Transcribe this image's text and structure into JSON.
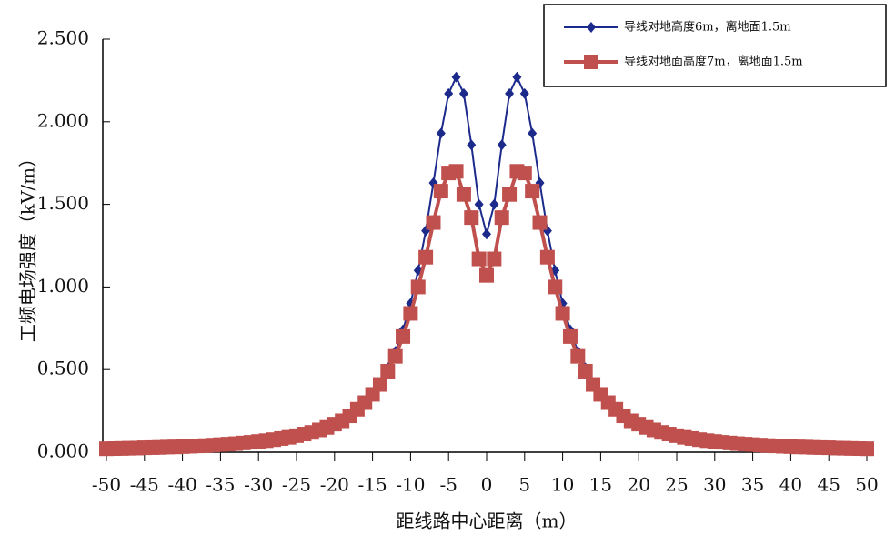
{
  "chart_data": {
    "type": "line",
    "x_label": "距线路中心距离（m）",
    "y_label": "工频电场强度（kV/m）",
    "x": [
      -50,
      -49,
      -48,
      -47,
      -46,
      -45,
      -44,
      -43,
      -42,
      -41,
      -40,
      -39,
      -38,
      -37,
      -36,
      -35,
      -34,
      -33,
      -32,
      -31,
      -30,
      -29,
      -28,
      -27,
      -26,
      -25,
      -24,
      -23,
      -22,
      -21,
      -20,
      -19,
      -18,
      -17,
      -16,
      -15,
      -14,
      -13,
      -12,
      -11,
      -10,
      -9,
      -8,
      -7,
      -6,
      -5,
      -4,
      -3,
      -2,
      -1,
      0,
      1,
      2,
      3,
      4,
      5,
      6,
      7,
      8,
      9,
      10,
      11,
      12,
      13,
      14,
      15,
      16,
      17,
      18,
      19,
      20,
      21,
      22,
      23,
      24,
      25,
      26,
      27,
      28,
      29,
      30,
      31,
      32,
      33,
      34,
      35,
      36,
      37,
      38,
      39,
      40,
      41,
      42,
      43,
      44,
      45,
      46,
      47,
      48,
      49,
      50
    ],
    "series": [
      {
        "name": "导线对地高度6m，离地面1.5m",
        "color": "#1c2a8c",
        "marker": "diamond",
        "values": [
          0.021,
          0.022,
          0.023,
          0.024,
          0.025,
          0.027,
          0.028,
          0.029,
          0.031,
          0.032,
          0.034,
          0.036,
          0.038,
          0.04,
          0.043,
          0.046,
          0.049,
          0.052,
          0.056,
          0.06,
          0.065,
          0.07,
          0.076,
          0.083,
          0.09,
          0.1,
          0.11,
          0.12,
          0.135,
          0.15,
          0.17,
          0.19,
          0.22,
          0.26,
          0.3,
          0.36,
          0.42,
          0.51,
          0.61,
          0.74,
          0.9,
          1.1,
          1.34,
          1.63,
          1.93,
          2.17,
          2.27,
          2.17,
          1.86,
          1.5,
          1.32,
          1.5,
          1.86,
          2.17,
          2.27,
          2.17,
          1.93,
          1.63,
          1.34,
          1.1,
          0.9,
          0.74,
          0.61,
          0.51,
          0.42,
          0.36,
          0.3,
          0.26,
          0.22,
          0.19,
          0.17,
          0.15,
          0.135,
          0.12,
          0.11,
          0.1,
          0.09,
          0.083,
          0.076,
          0.07,
          0.065,
          0.06,
          0.056,
          0.052,
          0.049,
          0.046,
          0.043,
          0.04,
          0.038,
          0.036,
          0.034,
          0.032,
          0.031,
          0.029,
          0.028,
          0.027,
          0.025,
          0.024,
          0.023,
          0.022,
          0.021
        ]
      },
      {
        "name": "导线对地面高度7m，离地面1.5m",
        "color": "#c0504d",
        "marker": "square",
        "values": [
          0.021,
          0.022,
          0.023,
          0.024,
          0.025,
          0.027,
          0.028,
          0.029,
          0.031,
          0.032,
          0.034,
          0.036,
          0.038,
          0.04,
          0.043,
          0.046,
          0.049,
          0.052,
          0.056,
          0.06,
          0.065,
          0.07,
          0.076,
          0.083,
          0.09,
          0.1,
          0.11,
          0.12,
          0.135,
          0.15,
          0.17,
          0.19,
          0.22,
          0.26,
          0.3,
          0.35,
          0.41,
          0.49,
          0.58,
          0.7,
          0.84,
          1.0,
          1.18,
          1.39,
          1.58,
          1.69,
          1.7,
          1.56,
          1.42,
          1.17,
          1.07,
          1.17,
          1.42,
          1.56,
          1.7,
          1.69,
          1.58,
          1.39,
          1.18,
          1.0,
          0.84,
          0.7,
          0.58,
          0.49,
          0.41,
          0.35,
          0.3,
          0.26,
          0.22,
          0.19,
          0.17,
          0.15,
          0.135,
          0.12,
          0.11,
          0.1,
          0.09,
          0.083,
          0.076,
          0.07,
          0.065,
          0.06,
          0.056,
          0.052,
          0.049,
          0.046,
          0.043,
          0.04,
          0.038,
          0.036,
          0.034,
          0.032,
          0.031,
          0.029,
          0.028,
          0.027,
          0.025,
          0.024,
          0.023,
          0.022,
          0.021
        ]
      }
    ],
    "xlim": [
      -50,
      50
    ],
    "xticks": [
      -50,
      -45,
      -40,
      -35,
      -30,
      -25,
      -20,
      -15,
      -10,
      -5,
      0,
      5,
      10,
      15,
      20,
      25,
      30,
      35,
      40,
      45,
      50
    ],
    "ylim": [
      0,
      2.5
    ],
    "yticks": [
      {
        "value": 0,
        "label": "0.000"
      },
      {
        "value": 0.5,
        "label": "0.500"
      },
      {
        "value": 1,
        "label": "1.000"
      },
      {
        "value": 1.5,
        "label": "1.500"
      },
      {
        "value": 2,
        "label": "2.000"
      },
      {
        "value": 2.5,
        "label": "2.500"
      }
    ],
    "grid": false,
    "legend": "top-right"
  }
}
